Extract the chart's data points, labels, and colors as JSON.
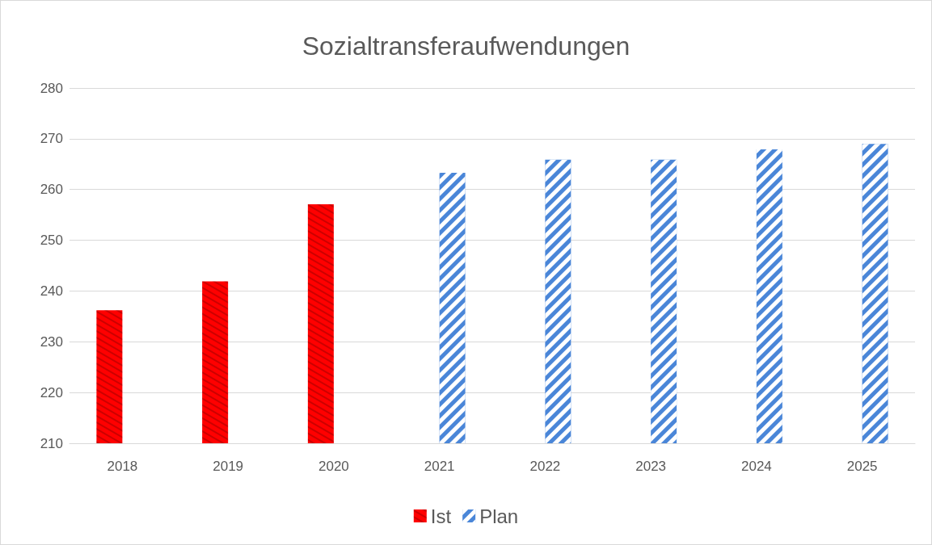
{
  "chart_data": {
    "type": "bar",
    "title": "Sozialtransferaufwendungen",
    "categories": [
      "2018",
      "2019",
      "2020",
      "2021",
      "2022",
      "2023",
      "2024",
      "2025"
    ],
    "series": [
      {
        "name": "Ist",
        "color": "#ff0000",
        "values": [
          236.2,
          241.9,
          257.1,
          null,
          null,
          null,
          null,
          null
        ]
      },
      {
        "name": "Plan",
        "color": "#4a86d8",
        "values": [
          null,
          null,
          null,
          263.3,
          265.9,
          265.9,
          267.9,
          269.0
        ]
      }
    ],
    "ylim": [
      210,
      280
    ],
    "yticks": [
      210,
      220,
      230,
      240,
      250,
      260,
      270,
      280
    ],
    "grid": "y",
    "legend": "bottom"
  }
}
